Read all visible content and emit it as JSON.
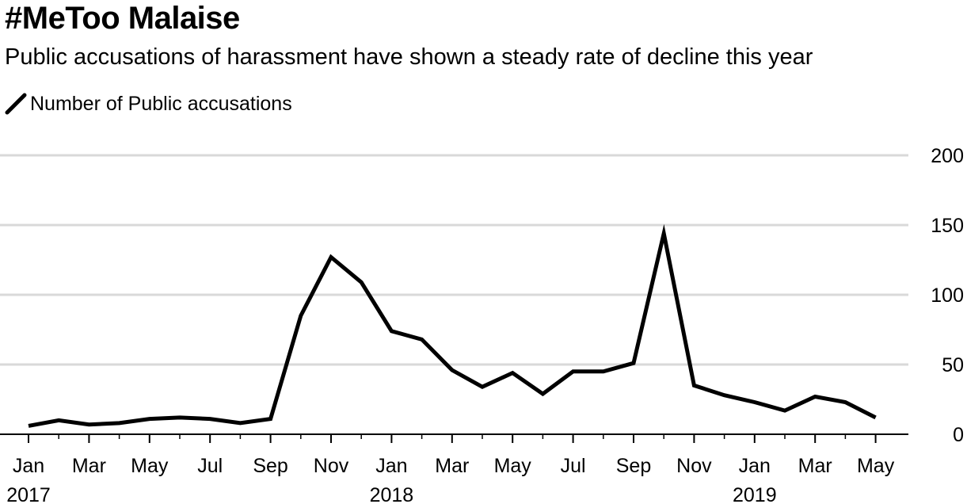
{
  "chart_data": {
    "type": "line",
    "title": "#MeToo Malaise",
    "subtitle": "Public accusations of harassment have shown a steady rate of decline this year",
    "series": [
      {
        "name": "Number of Public accusations",
        "color": "#000000",
        "values": [
          6,
          10,
          7,
          8,
          11,
          12,
          11,
          8,
          11,
          85,
          127,
          109,
          74,
          68,
          46,
          34,
          44,
          29,
          45,
          45,
          51,
          144,
          35,
          28,
          23,
          17,
          27,
          23,
          12
        ]
      }
    ],
    "x_start": "Jan 2017",
    "x_end": "May 2019",
    "frequency": "monthly",
    "xlabel": "",
    "ylabel": "",
    "ylim": [
      0,
      200
    ],
    "yticks": [
      0,
      50,
      100,
      150,
      200
    ],
    "xticks": [
      {
        "index": 0,
        "label": "Jan",
        "year": "2017"
      },
      {
        "index": 2,
        "label": "Mar",
        "year": ""
      },
      {
        "index": 4,
        "label": "May",
        "year": ""
      },
      {
        "index": 6,
        "label": "Jul",
        "year": ""
      },
      {
        "index": 8,
        "label": "Sep",
        "year": ""
      },
      {
        "index": 10,
        "label": "Nov",
        "year": ""
      },
      {
        "index": 12,
        "label": "Jan",
        "year": "2018"
      },
      {
        "index": 14,
        "label": "Mar",
        "year": ""
      },
      {
        "index": 16,
        "label": "May",
        "year": ""
      },
      {
        "index": 18,
        "label": "Jul",
        "year": ""
      },
      {
        "index": 20,
        "label": "Sep",
        "year": ""
      },
      {
        "index": 22,
        "label": "Nov",
        "year": ""
      },
      {
        "index": 24,
        "label": "Jan",
        "year": "2019"
      },
      {
        "index": 26,
        "label": "Mar",
        "year": ""
      },
      {
        "index": 28,
        "label": "May",
        "year": ""
      }
    ],
    "grid": true,
    "y_axis_side": "right",
    "legend_position": "top-left"
  }
}
